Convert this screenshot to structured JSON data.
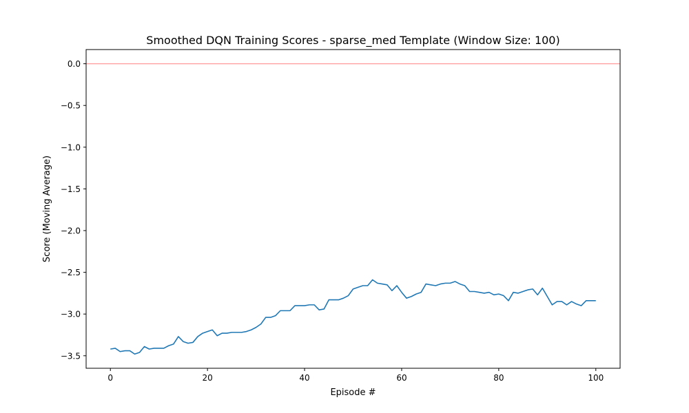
{
  "chart_data": {
    "type": "line",
    "title": "Smoothed DQN Training Scores - sparse_med Template (Window Size: 100)",
    "xlabel": "Episode #",
    "ylabel": "Score (Moving Average)",
    "xlim": [
      -5,
      105
    ],
    "ylim": [
      -3.65,
      0.17
    ],
    "xticks": [
      0,
      20,
      40,
      60,
      80,
      100
    ],
    "yticks": [
      0.0,
      -0.5,
      -1.0,
      -1.5,
      -2.0,
      -2.5,
      -3.0,
      -3.5
    ],
    "ytick_labels": [
      "0.0",
      "−0.5",
      "−1.0",
      "−1.5",
      "−2.0",
      "−2.5",
      "−3.0",
      "−3.5"
    ],
    "grid": false,
    "reference_line": {
      "y": 0.0,
      "color": "#ff9999"
    },
    "series": [
      {
        "color": "#1f77b4",
        "x": [
          0,
          1,
          2,
          3,
          4,
          5,
          6,
          7,
          8,
          9,
          10,
          11,
          12,
          13,
          14,
          15,
          16,
          17,
          18,
          19,
          20,
          21,
          22,
          23,
          24,
          25,
          26,
          27,
          28,
          29,
          30,
          31,
          32,
          33,
          34,
          35,
          36,
          37,
          38,
          39,
          40,
          41,
          42,
          43,
          44,
          45,
          46,
          47,
          48,
          49,
          50,
          51,
          52,
          53,
          54,
          55,
          56,
          57,
          58,
          59,
          60,
          61,
          62,
          63,
          64,
          65,
          66,
          67,
          68,
          69,
          70,
          71,
          72,
          73,
          74,
          75,
          76,
          77,
          78,
          79,
          80,
          81,
          82,
          83,
          84,
          85,
          86,
          87,
          88,
          89,
          90,
          91,
          92,
          93,
          94,
          95,
          96,
          97,
          98,
          99,
          100
        ],
        "values": [
          -3.42,
          -3.41,
          -3.45,
          -3.44,
          -3.44,
          -3.48,
          -3.46,
          -3.39,
          -3.42,
          -3.41,
          -3.41,
          -3.41,
          -3.38,
          -3.36,
          -3.27,
          -3.33,
          -3.35,
          -3.34,
          -3.27,
          -3.23,
          -3.21,
          -3.19,
          -3.26,
          -3.23,
          -3.23,
          -3.22,
          -3.22,
          -3.22,
          -3.21,
          -3.19,
          -3.16,
          -3.12,
          -3.04,
          -3.04,
          -3.02,
          -2.96,
          -2.96,
          -2.96,
          -2.9,
          -2.9,
          -2.9,
          -2.89,
          -2.89,
          -2.95,
          -2.94,
          -2.83,
          -2.83,
          -2.83,
          -2.81,
          -2.78,
          -2.7,
          -2.68,
          -2.66,
          -2.66,
          -2.59,
          -2.63,
          -2.64,
          -2.65,
          -2.72,
          -2.66,
          -2.74,
          -2.81,
          -2.79,
          -2.76,
          -2.74,
          -2.64,
          -2.65,
          -2.66,
          -2.64,
          -2.63,
          -2.63,
          -2.61,
          -2.64,
          -2.66,
          -2.73,
          -2.73,
          -2.74,
          -2.75,
          -2.74,
          -2.77,
          -2.76,
          -2.78,
          -2.84,
          -2.74,
          -2.75,
          -2.73,
          -2.71,
          -2.7,
          -2.77,
          -2.69,
          -2.79,
          -2.89,
          -2.85,
          -2.85,
          -2.89,
          -2.85,
          -2.88,
          -2.9,
          -2.84,
          -2.84,
          -2.84
        ]
      }
    ]
  }
}
